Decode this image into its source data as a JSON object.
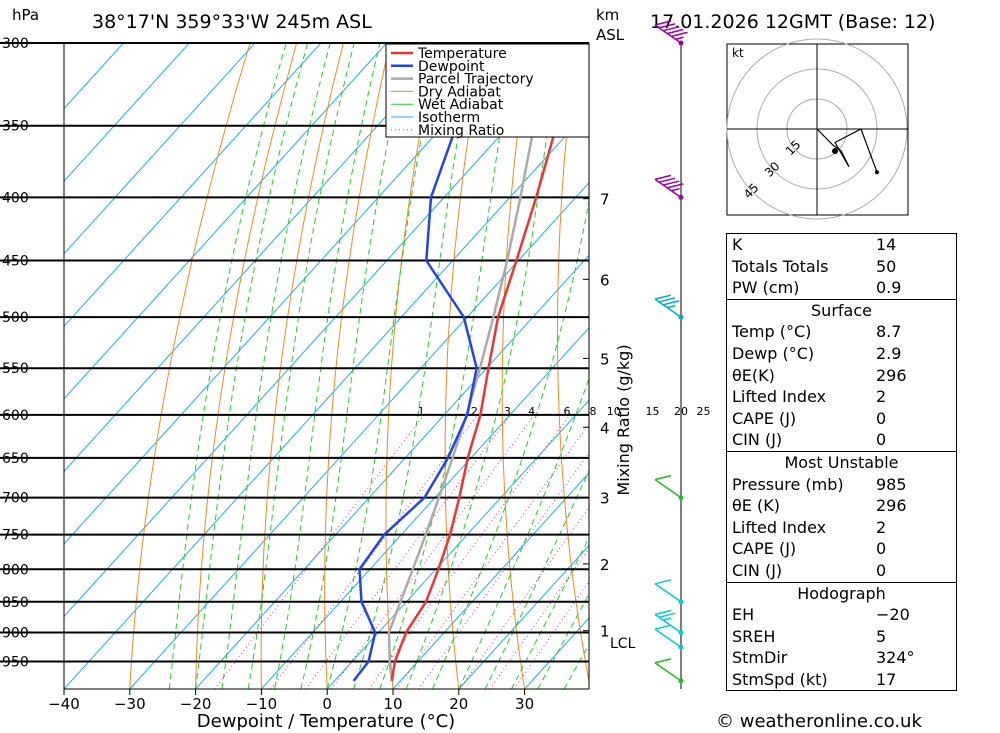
{
  "header": {
    "location": "38°17'N 359°33'W 245m ASL",
    "datetime": "17.01.2026 12GMT (Base: 12)",
    "pressure_unit": "hPa",
    "height_unit": "km",
    "height_unit2": "ASL"
  },
  "chart_data": {
    "type": "skew-t",
    "xlabel": "Dewpoint / Temperature (°C)",
    "ylabel": "hPa",
    "xlim": [
      -40,
      40
    ],
    "ylim": [
      1000,
      300
    ],
    "x_ticks": [
      -40,
      -30,
      -20,
      -10,
      0,
      10,
      20,
      30
    ],
    "x_tick_labels": [
      "−40",
      "−30",
      "−20",
      "−10",
      "0",
      "10",
      "20",
      "30"
    ],
    "pressure_levels": [
      300,
      350,
      400,
      450,
      500,
      550,
      600,
      650,
      700,
      750,
      800,
      850,
      900,
      950
    ],
    "height_ticks": [
      {
        "label": "7",
        "p": 401
      },
      {
        "label": "6",
        "p": 466
      },
      {
        "label": "5",
        "p": 540
      },
      {
        "label": "4",
        "p": 614
      },
      {
        "label": "3",
        "p": 700
      },
      {
        "label": "2",
        "p": 792
      },
      {
        "label": "1",
        "p": 897
      }
    ],
    "lcl_label": "LCL",
    "lcl_pressure": 898,
    "mixing_ratio_label": "Mixing Ratio (g/kg)",
    "mixing_ratio_values": [
      1,
      2,
      3,
      4,
      6,
      8,
      10,
      15,
      20,
      25
    ],
    "legend": [
      "Temperature",
      "Dewpoint",
      "Parcel Trajectory",
      "Dry Adiabat",
      "Wet Adiabat",
      "Isotherm",
      "Mixing Ratio"
    ],
    "legend_position": "top-right",
    "series": [
      {
        "name": "Temperature",
        "color": "#ee3333",
        "points": [
          [
            985,
            8.7
          ],
          [
            950,
            6.5
          ],
          [
            900,
            4.2
          ],
          [
            850,
            3.0
          ],
          [
            800,
            0.4
          ],
          [
            750,
            -2.6
          ],
          [
            700,
            -6.3
          ],
          [
            650,
            -10.5
          ],
          [
            600,
            -14.5
          ],
          [
            550,
            -19.7
          ],
          [
            500,
            -25.3
          ],
          [
            450,
            -30.3
          ],
          [
            400,
            -36.0
          ],
          [
            350,
            -42.8
          ],
          [
            300,
            -49.6
          ]
        ]
      },
      {
        "name": "Dewpoint",
        "color": "#2244ee",
        "points": [
          [
            985,
            2.9
          ],
          [
            950,
            2.5
          ],
          [
            900,
            -0.5
          ],
          [
            850,
            -6.8
          ],
          [
            800,
            -11.6
          ],
          [
            750,
            -12.6
          ],
          [
            700,
            -11.6
          ],
          [
            650,
            -13.5
          ],
          [
            600,
            -16.5
          ],
          [
            550,
            -21.5
          ],
          [
            500,
            -30.5
          ],
          [
            450,
            -44.0
          ],
          [
            400,
            -52.0
          ],
          [
            350,
            -58.0
          ],
          [
            300,
            -66.0
          ]
        ]
      },
      {
        "name": "Parcel Trajectory",
        "color": "#aaaaaa",
        "points": [
          [
            985,
            8.7
          ],
          [
            950,
            5.7
          ],
          [
            900,
            1.6
          ],
          [
            850,
            -0.9
          ],
          [
            800,
            -3.5
          ],
          [
            750,
            -6.3
          ],
          [
            700,
            -9.4
          ],
          [
            650,
            -12.8
          ],
          [
            600,
            -16.6
          ],
          [
            550,
            -21.0
          ],
          [
            500,
            -26.0
          ],
          [
            450,
            -31.7
          ],
          [
            400,
            -38.4
          ],
          [
            350,
            -46.2
          ],
          [
            300,
            -55.0
          ]
        ]
      }
    ]
  },
  "wind_barbs": [
    {
      "p": 300,
      "speed_kt": 45,
      "color": "#9900aa"
    },
    {
      "p": 400,
      "speed_kt": 35,
      "color": "#9900aa"
    },
    {
      "p": 500,
      "speed_kt": 25,
      "color": "#00aacc"
    },
    {
      "p": 700,
      "speed_kt": 10,
      "color": "#22bb22"
    },
    {
      "p": 850,
      "speed_kt": 10,
      "color": "#00cccc"
    },
    {
      "p": 900,
      "speed_kt": 15,
      "color": "#00cccc"
    },
    {
      "p": 925,
      "speed_kt": 10,
      "color": "#00cccc"
    },
    {
      "p": 985,
      "speed_kt": 10,
      "color": "#22bb22"
    }
  ],
  "hodograph": {
    "unit": "kt",
    "ring_labels": [
      "15",
      "30",
      "45"
    ],
    "points": [
      [
        0,
        0
      ],
      [
        8,
        -6
      ],
      [
        12,
        -8
      ],
      [
        16,
        -14
      ],
      [
        9,
        -5
      ],
      [
        22,
        0
      ],
      [
        30,
        -16
      ]
    ]
  },
  "indices": {
    "basic": [
      {
        "label": "K",
        "value": "14"
      },
      {
        "label": "Totals Totals",
        "value": "50"
      },
      {
        "label": "PW (cm)",
        "value": "0.9"
      }
    ],
    "surface_title": "Surface",
    "surface": [
      {
        "label": "Temp (°C)",
        "value": "8.7"
      },
      {
        "label": "Dewp (°C)",
        "value": "2.9"
      },
      {
        "label": "θE(K)",
        "value": "296"
      },
      {
        "label": "Lifted Index",
        "value": "2"
      },
      {
        "label": "CAPE (J)",
        "value": "0"
      },
      {
        "label": "CIN (J)",
        "value": "0"
      }
    ],
    "mu_title": "Most Unstable",
    "mu": [
      {
        "label": "Pressure (mb)",
        "value": "985"
      },
      {
        "label": "θE (K)",
        "value": "296"
      },
      {
        "label": "Lifted Index",
        "value": "2"
      },
      {
        "label": "CAPE (J)",
        "value": "0"
      },
      {
        "label": "CIN (J)",
        "value": "0"
      }
    ],
    "hodo_title": "Hodograph",
    "hodo": [
      {
        "label": "EH",
        "value": "−20"
      },
      {
        "label": "SREH",
        "value": "5"
      },
      {
        "label": "StmDir",
        "value": "324°"
      },
      {
        "label": "StmSpd (kt)",
        "value": "17"
      }
    ]
  },
  "copyright": "© weatheronline.co.uk"
}
